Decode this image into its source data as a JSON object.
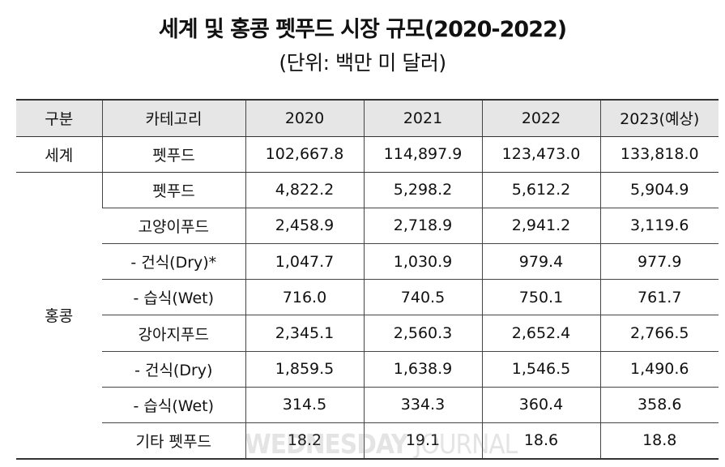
{
  "title": "세계 및 홍콩 펫푸드 시장 규모(2020-2022)",
  "subtitle": "(단위: 백만 미 달러)",
  "table": {
    "headers": [
      "구분",
      "카테고리",
      "2020",
      "2021",
      "2022",
      "2023(예상)"
    ],
    "world": {
      "region": "세계",
      "category": "펫푸드",
      "values": [
        "102,667.8",
        "114,897.9",
        "123,473.0",
        "133,818.0"
      ]
    },
    "hk": {
      "region": "홍콩",
      "rows": [
        {
          "category": "펫푸드",
          "values": [
            "4,822.2",
            "5,298.2",
            "5,612.2",
            "5,904.9"
          ]
        },
        {
          "category": "고양이푸드",
          "values": [
            "2,458.9",
            "2,718.9",
            "2,941.2",
            "3,119.6"
          ]
        },
        {
          "category": "- 건식(Dry)*",
          "values": [
            "1,047.7",
            "1,030.9",
            "979.4",
            "977.9"
          ]
        },
        {
          "category": "- 습식(Wet)",
          "values": [
            "716.0",
            "740.5",
            "750.1",
            "761.7"
          ]
        },
        {
          "category": "강아지푸드",
          "values": [
            "2,345.1",
            "2,560.3",
            "2,652.4",
            "2,766.5"
          ]
        },
        {
          "category": "- 건식(Dry)",
          "values": [
            "1,859.5",
            "1,638.9",
            "1,546.5",
            "1,490.6"
          ]
        },
        {
          "category": "- 습식(Wet)",
          "values": [
            "314.5",
            "334.3",
            "360.4",
            "358.6"
          ]
        },
        {
          "category": "기타 펫푸드",
          "values": [
            "18.2",
            "19.1",
            "18.6",
            "18.8"
          ]
        }
      ]
    }
  },
  "watermark": {
    "strong": "WEDNESDAY",
    "light": "JOURNAL"
  }
}
